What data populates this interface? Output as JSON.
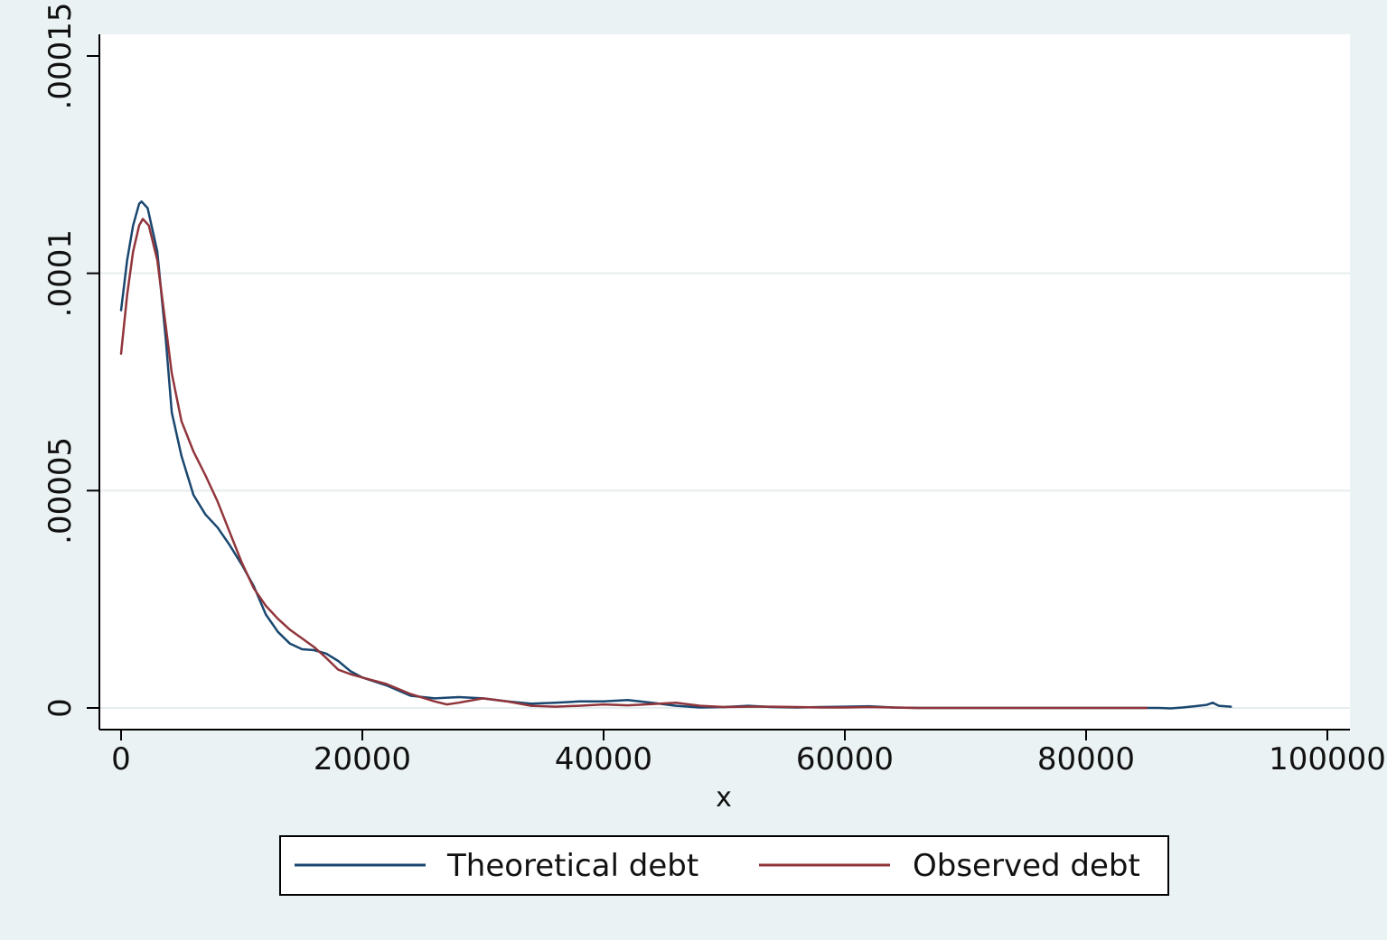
{
  "chart_data": {
    "type": "line",
    "title": "",
    "xlabel": "x",
    "ylabel": "",
    "xlim": [
      0,
      100000
    ],
    "ylim": [
      0,
      0.00015
    ],
    "x_ticks": [
      0,
      20000,
      40000,
      60000,
      80000,
      100000
    ],
    "x_tick_labels": [
      "0",
      "20000",
      "40000",
      "60000",
      "80000",
      "100000"
    ],
    "y_ticks": [
      0,
      5e-05,
      0.0001,
      0.00015
    ],
    "y_tick_labels": [
      "0",
      ".00005",
      ".0001",
      ".00015"
    ],
    "grid": true,
    "legend_position": "bottom",
    "series": [
      {
        "name": "Theoretical debt",
        "color": "#1a476f",
        "points": [
          [
            0,
            9.15e-05
          ],
          [
            500,
            0.000103
          ],
          [
            1000,
            0.000111
          ],
          [
            1500,
            0.000116
          ],
          [
            1700,
            0.0001165
          ],
          [
            2200,
            0.000115
          ],
          [
            3000,
            0.000105
          ],
          [
            3700,
            8.5e-05
          ],
          [
            4200,
            6.8e-05
          ],
          [
            5000,
            5.8e-05
          ],
          [
            6000,
            4.9e-05
          ],
          [
            7000,
            4.45e-05
          ],
          [
            8000,
            4.15e-05
          ],
          [
            9000,
            3.75e-05
          ],
          [
            10000,
            3.3e-05
          ],
          [
            11000,
            2.8e-05
          ],
          [
            12000,
            2.15e-05
          ],
          [
            13000,
            1.75e-05
          ],
          [
            14000,
            1.48e-05
          ],
          [
            15000,
            1.35e-05
          ],
          [
            16000,
            1.33e-05
          ],
          [
            17000,
            1.25e-05
          ],
          [
            18000,
            1.08e-05
          ],
          [
            19000,
            8.5e-06
          ],
          [
            20000,
            7e-06
          ],
          [
            22000,
            5.2e-06
          ],
          [
            24000,
            2.8e-06
          ],
          [
            26000,
            2.2e-06
          ],
          [
            28000,
            2.5e-06
          ],
          [
            30000,
            2.2e-06
          ],
          [
            32000,
            1.5e-06
          ],
          [
            34000,
            1e-06
          ],
          [
            36000,
            1.2e-06
          ],
          [
            38000,
            1.5e-06
          ],
          [
            40000,
            1.5e-06
          ],
          [
            42000,
            1.8e-06
          ],
          [
            44000,
            1.2e-06
          ],
          [
            46000,
            5e-07
          ],
          [
            48000,
            1e-07
          ],
          [
            50000,
            2e-07
          ],
          [
            52000,
            5e-07
          ],
          [
            54000,
            2e-07
          ],
          [
            56000,
            1e-07
          ],
          [
            58000,
            2e-07
          ],
          [
            60000,
            3e-07
          ],
          [
            62000,
            4e-07
          ],
          [
            64000,
            1e-07
          ],
          [
            66000,
            0.0
          ],
          [
            70000,
            0.0
          ],
          [
            75000,
            0.0
          ],
          [
            80000,
            0.0
          ],
          [
            84000,
            0.0
          ],
          [
            86000,
            0.0
          ],
          [
            87000,
            -1e-07
          ],
          [
            88000,
            1e-07
          ],
          [
            89000,
            4e-07
          ],
          [
            90000,
            7e-07
          ],
          [
            90500,
            1.2e-06
          ],
          [
            91000,
            5e-07
          ],
          [
            92000,
            3e-07
          ]
        ]
      },
      {
        "name": "Observed debt",
        "color": "#90353b",
        "points": [
          [
            0,
            8.15e-05
          ],
          [
            500,
            9.5e-05
          ],
          [
            1000,
            0.000105
          ],
          [
            1500,
            0.000111
          ],
          [
            1800,
            0.0001125
          ],
          [
            2300,
            0.000111
          ],
          [
            3000,
            0.000103
          ],
          [
            3700,
            8.8e-05
          ],
          [
            4200,
            7.7e-05
          ],
          [
            5000,
            6.6e-05
          ],
          [
            6000,
            5.9e-05
          ],
          [
            7000,
            5.35e-05
          ],
          [
            8000,
            4.75e-05
          ],
          [
            9000,
            4.05e-05
          ],
          [
            10000,
            3.35e-05
          ],
          [
            11000,
            2.75e-05
          ],
          [
            12000,
            2.35e-05
          ],
          [
            13000,
            2.05e-05
          ],
          [
            14000,
            1.8e-05
          ],
          [
            15000,
            1.6e-05
          ],
          [
            16000,
            1.4e-05
          ],
          [
            17000,
            1.15e-05
          ],
          [
            18000,
            8.8e-06
          ],
          [
            19000,
            7.8e-06
          ],
          [
            20000,
            7e-06
          ],
          [
            22000,
            5.5e-06
          ],
          [
            24000,
            3.2e-06
          ],
          [
            26000,
            1.5e-06
          ],
          [
            27000,
            8e-07
          ],
          [
            28000,
            1.2e-06
          ],
          [
            30000,
            2.2e-06
          ],
          [
            32000,
            1.5e-06
          ],
          [
            34000,
            5e-07
          ],
          [
            36000,
            3e-07
          ],
          [
            38000,
            5e-07
          ],
          [
            40000,
            8e-07
          ],
          [
            42000,
            6e-07
          ],
          [
            44000,
            9e-07
          ],
          [
            46000,
            1.2e-06
          ],
          [
            48000,
            5e-07
          ],
          [
            50000,
            2e-07
          ],
          [
            52000,
            3e-07
          ],
          [
            54000,
            3e-07
          ],
          [
            56000,
            2e-07
          ],
          [
            58000,
            1e-07
          ],
          [
            60000,
            1e-07
          ],
          [
            62000,
            2e-07
          ],
          [
            64000,
            1e-07
          ],
          [
            66000,
            0.0
          ],
          [
            70000,
            0.0
          ],
          [
            75000,
            0.0
          ],
          [
            80000,
            0.0
          ],
          [
            85000,
            0.0
          ]
        ]
      }
    ]
  }
}
